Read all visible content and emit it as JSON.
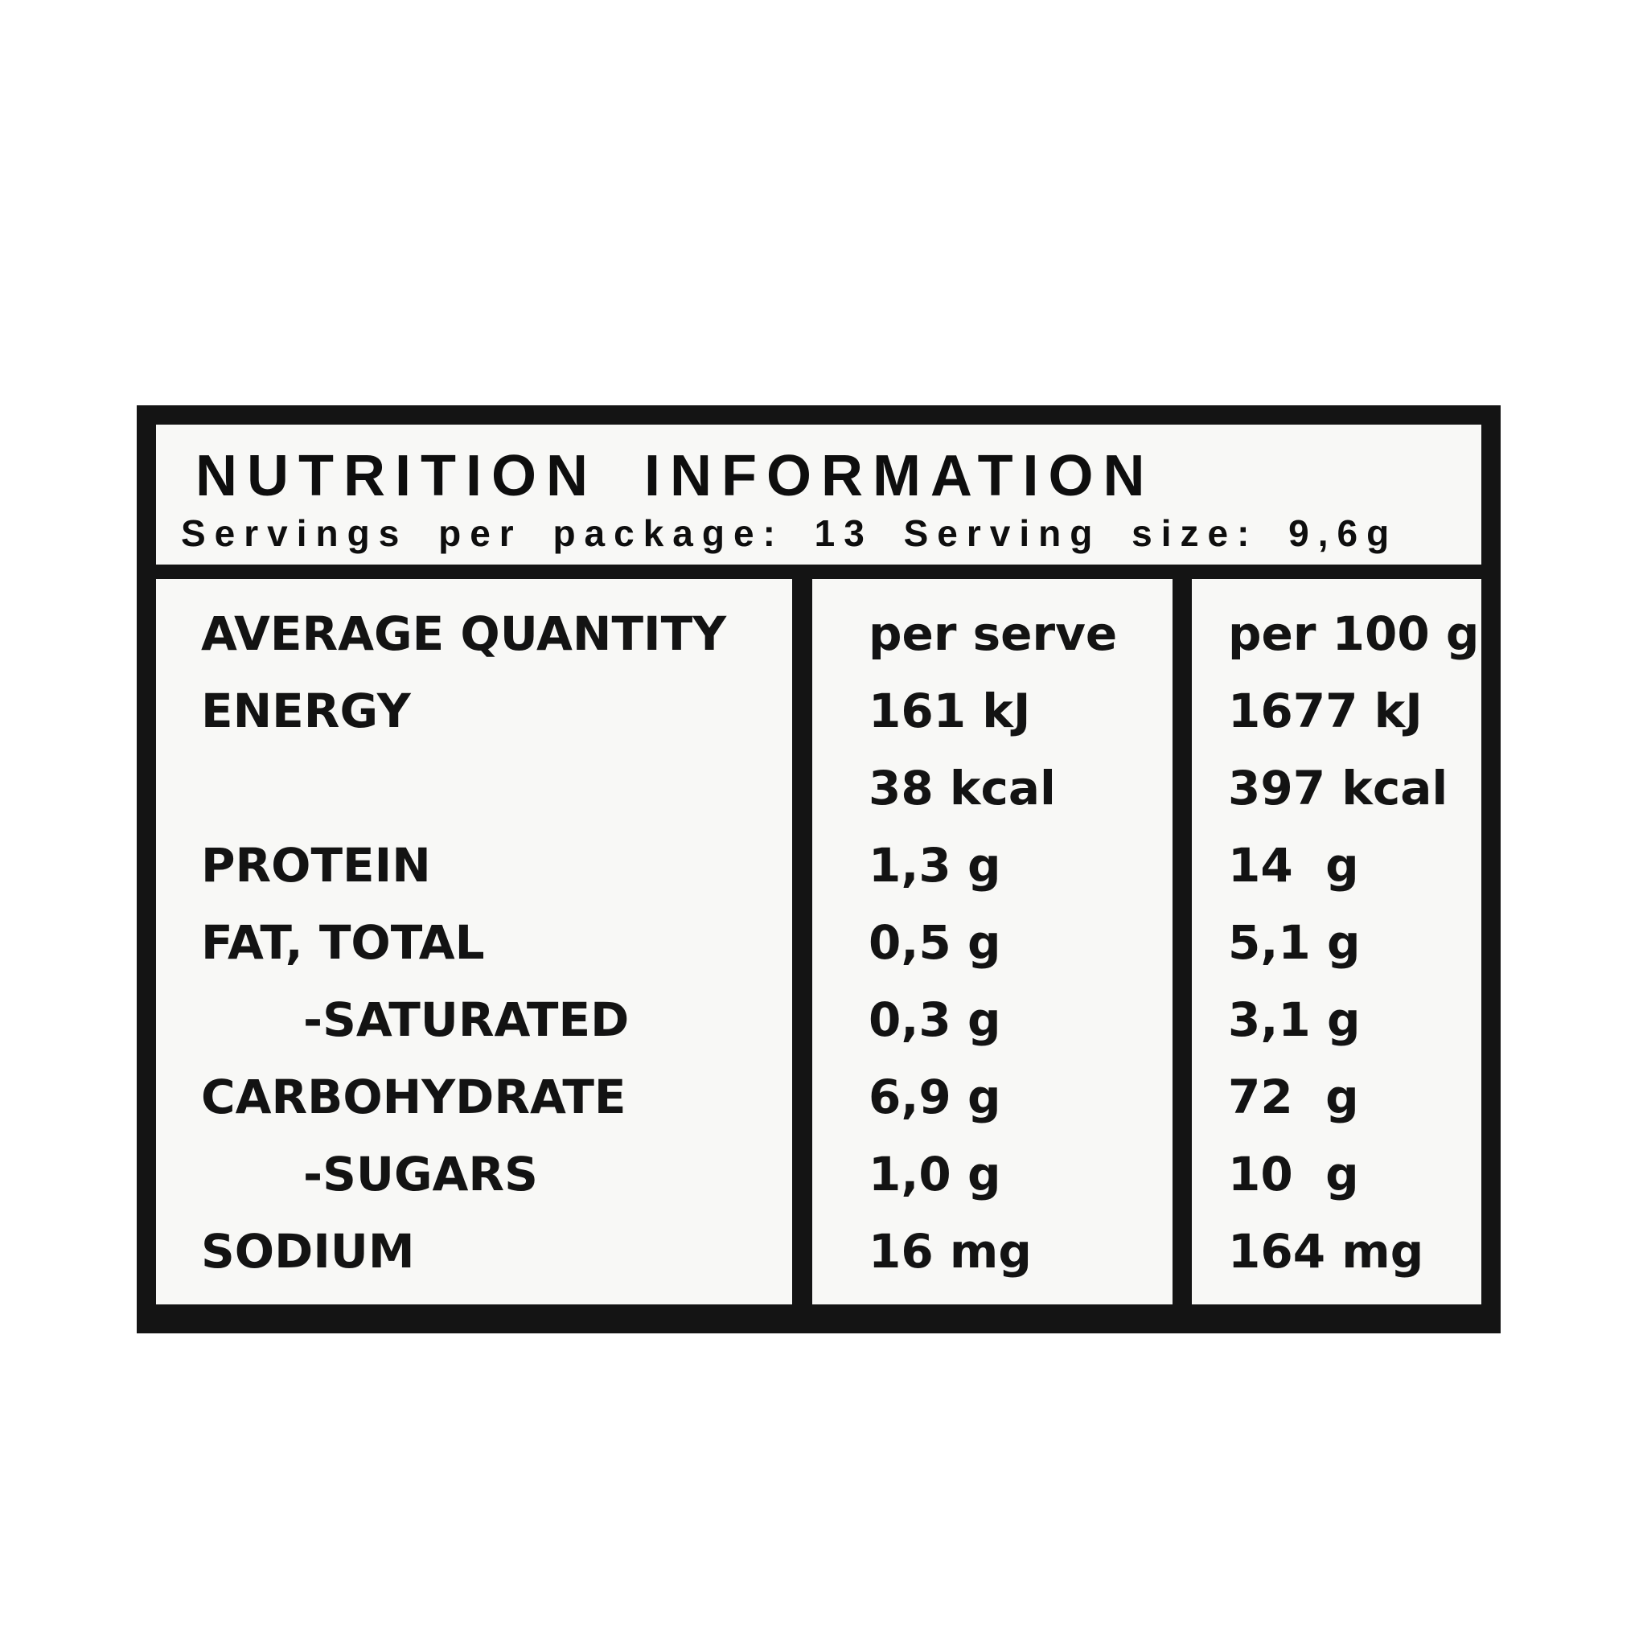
{
  "page": {
    "background": "#ffffff"
  },
  "label": {
    "background": "#f8f8f6",
    "border_color": "#141414",
    "header": {
      "title": "NUTRITION INFORMATION",
      "subtitle": "Servings per package: 13 Serving size: 9,6g"
    },
    "table": {
      "header_row": {
        "label": "AVERAGE QUANTITY",
        "per_serve": "per serve",
        "per_100g": "per 100 g"
      },
      "rows": [
        {
          "label": "ENERGY",
          "indent": false,
          "per_serve": "161 kJ",
          "per_100g": "1677 kJ"
        },
        {
          "label": "",
          "indent": false,
          "per_serve": "38 kcal",
          "per_100g": "397 kcal"
        },
        {
          "label": "PROTEIN",
          "indent": false,
          "per_serve": "1,3 g",
          "per_100g": "14  g"
        },
        {
          "label": "FAT, TOTAL",
          "indent": false,
          "per_serve": "0,5 g",
          "per_100g": "5,1 g"
        },
        {
          "label": "-SATURATED",
          "indent": true,
          "per_serve": "0,3 g",
          "per_100g": "3,1 g"
        },
        {
          "label": "CARBOHYDRATE",
          "indent": false,
          "per_serve": "6,9 g",
          "per_100g": "72  g"
        },
        {
          "label": "-SUGARS",
          "indent": true,
          "per_serve": "1,0 g",
          "per_100g": "10  g"
        },
        {
          "label": "SODIUM",
          "indent": false,
          "per_serve": "16 mg",
          "per_100g": "164 mg"
        }
      ]
    }
  }
}
